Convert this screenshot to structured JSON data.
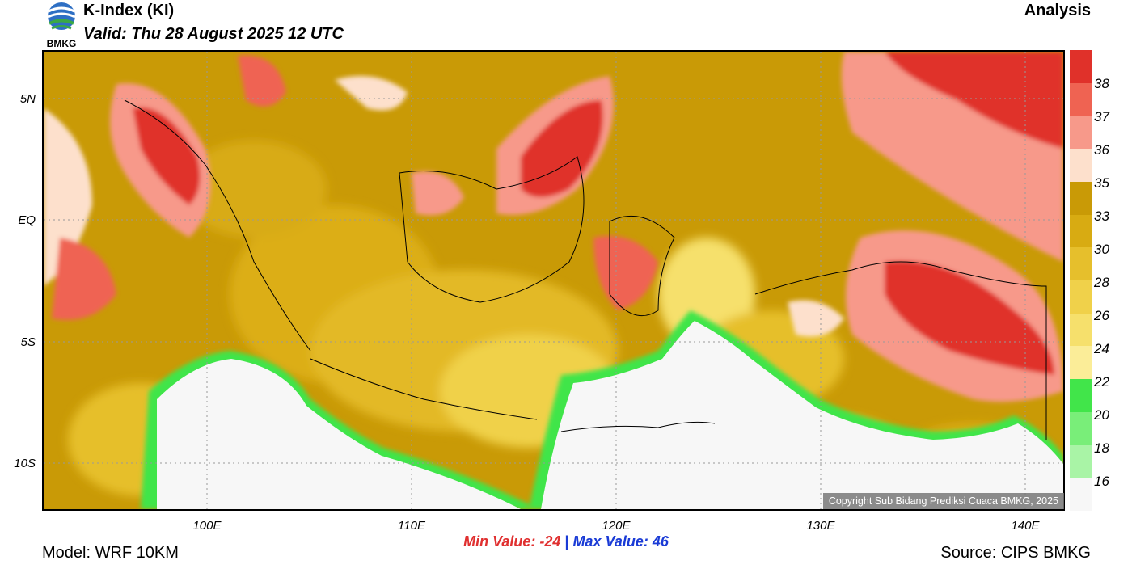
{
  "header": {
    "title": "K-Index (KI)",
    "valid": "Valid: Thu 28 August 2025 12 UTC",
    "product_type": "Analysis",
    "logo_text": "BMKG"
  },
  "map": {
    "lat_labels": [
      "5N",
      "EQ",
      "5S",
      "10S"
    ],
    "lon_labels": [
      "100E",
      "110E",
      "120E",
      "130E",
      "140E"
    ],
    "copyright": "Copyright Sub Bidang Prediksi Cuaca BMKG, 2025"
  },
  "colorbar": {
    "labels": [
      "38",
      "37",
      "36",
      "35",
      "33",
      "30",
      "28",
      "26",
      "24",
      "22",
      "20",
      "18",
      "16"
    ],
    "colors": [
      "#e0312a",
      "#ef6352",
      "#f7998a",
      "#fde0cc",
      "#c99a06",
      "#d8ab12",
      "#e6bf2c",
      "#f0d14a",
      "#f6e06c",
      "#fbed98",
      "#41e54a",
      "#79ee79",
      "#a9f4a6",
      "#f7f7f7"
    ]
  },
  "stats": {
    "min_label": "Min Value: -24",
    "separator": "|",
    "max_label": "Max Value:  46"
  },
  "footer": {
    "model": "Model: WRF 10KM",
    "source": "Source: CIPS BMKG"
  }
}
